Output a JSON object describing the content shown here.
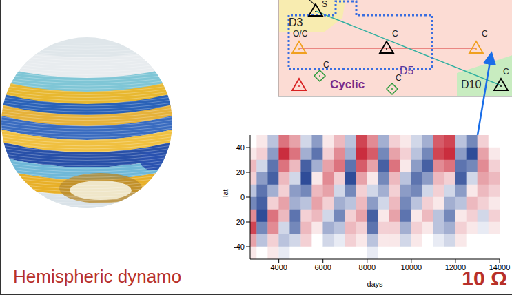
{
  "title": "Hemispheric dynamo",
  "label": "10 Ω",
  "phase_diagram": {
    "regions": [
      "D3",
      "D5",
      "D10"
    ],
    "region_label": "Cyclic",
    "markers": [
      {
        "label": "S"
      },
      {
        "label": "O/C"
      },
      {
        "label": "C"
      },
      {
        "label": "C"
      },
      {
        "label": "C"
      },
      {
        "label": "C"
      },
      {
        "label": "C"
      }
    ]
  },
  "chart_data": {
    "type": "heatmap",
    "xlabel": "days",
    "ylabel": "lat",
    "xlim": [
      2700,
      14000
    ],
    "xticks": [
      4000,
      6000,
      8000,
      10000,
      12000,
      14000
    ],
    "ylim": [
      -50,
      50
    ],
    "yticks": [
      40,
      20,
      0,
      -20,
      -40
    ],
    "x_edges": [
      2700,
      3000,
      3500,
      4000,
      4500,
      5000,
      5500,
      6000,
      6500,
      7000,
      7500,
      8000,
      8500,
      9000,
      9500,
      10000,
      10500,
      11000,
      11500,
      12000,
      12500,
      13000,
      13500,
      14000
    ],
    "y_edges": [
      50,
      40,
      30,
      20,
      10,
      0,
      -10,
      -20,
      -30,
      -40,
      -50
    ],
    "color_range": [
      -1,
      1
    ],
    "cells": [
      [
        0,
        0.1,
        -0.3,
        0.6,
        0.4,
        -0.2,
        -0.5,
        0.1,
        0.3,
        -0.3,
        0.8,
        0.5,
        -0.4,
        0.2,
        0.1,
        -0.2,
        -0.4,
        0.7,
        0.8,
        -0.3,
        -0.6,
        0.2,
        0
      ],
      [
        0.1,
        0.2,
        -0.5,
        0.9,
        0.6,
        -0.4,
        -0.7,
        0.2,
        0.5,
        -0.4,
        0.9,
        0.7,
        -0.6,
        0.4,
        0.2,
        -0.3,
        -0.6,
        0.8,
        0.9,
        -0.5,
        -0.9,
        0.4,
        0.1
      ],
      [
        0.3,
        -0.2,
        -0.7,
        0.6,
        0.3,
        -0.8,
        -0.4,
        0.4,
        0.6,
        -0.7,
        0.7,
        0.4,
        -0.8,
        0.6,
        0.1,
        -0.5,
        -0.8,
        0.5,
        0.6,
        -0.7,
        -0.6,
        0.5,
        0.2
      ],
      [
        0.2,
        -0.5,
        -0.8,
        0.3,
        -0.2,
        -0.9,
        0.1,
        0.5,
        0.2,
        -0.9,
        0.4,
        0.1,
        -0.6,
        0.3,
        -0.3,
        -0.7,
        -0.5,
        0.3,
        0.2,
        -0.8,
        -0.2,
        0.4,
        0.3
      ],
      [
        -0.3,
        -0.7,
        -0.4,
        0.2,
        -0.5,
        -0.6,
        0.3,
        0.4,
        -0.2,
        -0.6,
        0.2,
        -0.2,
        -0.4,
        0.2,
        -0.5,
        -0.6,
        -0.2,
        0.2,
        -0.2,
        -0.5,
        0.1,
        0.3,
        0.2
      ],
      [
        -0.6,
        -0.8,
        0.2,
        0.4,
        -0.4,
        -0.3,
        0.4,
        0.2,
        -0.4,
        -0.3,
        0.3,
        -0.5,
        -0.2,
        0.3,
        -0.6,
        -0.3,
        0.2,
        0.1,
        -0.4,
        -0.3,
        0.3,
        0.2,
        0.1
      ],
      [
        0.5,
        -0.9,
        0.6,
        0.3,
        -0.7,
        0.2,
        0.3,
        -0.2,
        -0.6,
        0.2,
        0.4,
        -0.8,
        0.1,
        0.4,
        -0.7,
        0.1,
        0.3,
        -0.3,
        -0.6,
        0.1,
        0.2,
        -0.2,
        0.2
      ],
      [
        0.8,
        -0.6,
        0.5,
        -0.2,
        -0.6,
        0.3,
        0.1,
        -0.4,
        -0.3,
        0.3,
        0.2,
        -0.7,
        0.2,
        0.2,
        -0.4,
        0.2,
        0.1,
        -0.3,
        -0.4,
        0.2,
        0.1,
        -0.1,
        0.1
      ],
      [
        0.4,
        -0.3,
        0.2,
        -0.3,
        -0.2,
        0.2,
        0,
        -0.2,
        -0.1,
        0.2,
        0.1,
        -0.3,
        0.1,
        0.1,
        -0.2,
        0.1,
        0,
        -0.1,
        -0.2,
        0.1,
        0,
        0,
        0
      ],
      [
        0.1,
        0,
        0.1,
        -0.1,
        0,
        0,
        0,
        0,
        0,
        0,
        0,
        -0.1,
        0,
        0,
        0,
        0,
        0,
        0,
        0,
        0,
        0,
        0,
        0
      ]
    ]
  }
}
